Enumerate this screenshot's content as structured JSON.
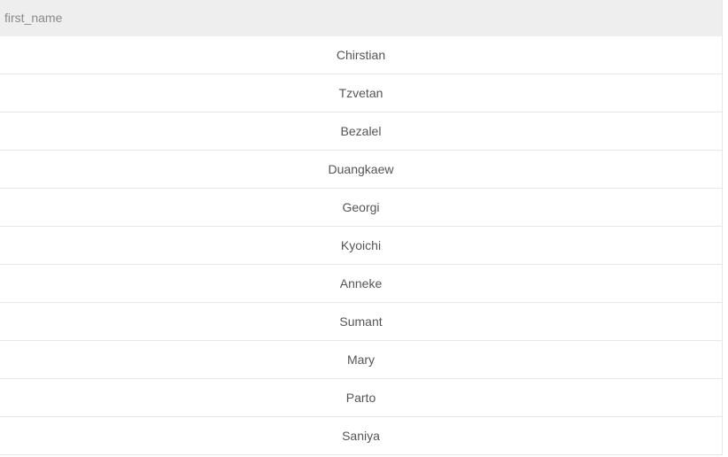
{
  "table": {
    "column_header": "first_name",
    "rows": [
      "Chirstian",
      "Tzvetan",
      "Bezalel",
      "Duangkaew",
      "Georgi",
      "Kyoichi",
      "Anneke",
      "Sumant",
      "Mary",
      "Parto",
      "Saniya"
    ]
  }
}
